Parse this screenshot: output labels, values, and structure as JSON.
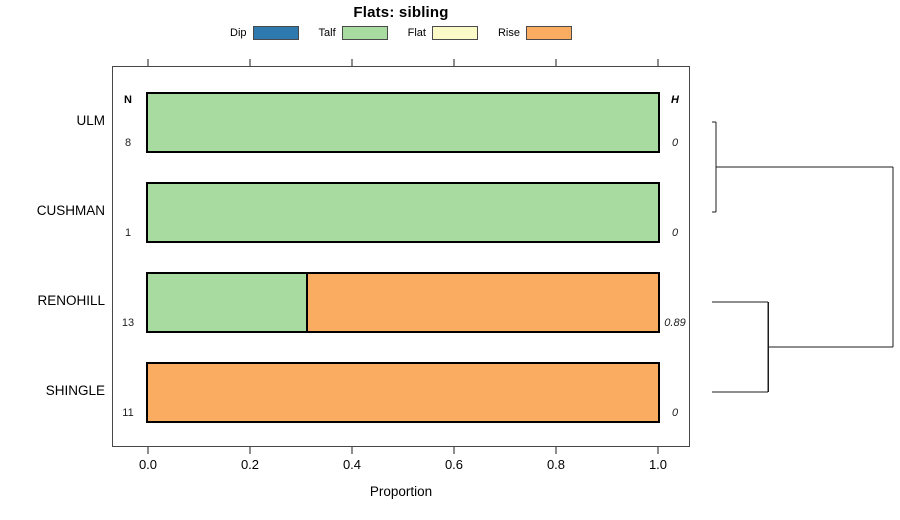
{
  "chart_data": {
    "type": "bar",
    "variant": "horizontal_stacked_proportions_with_dendrogram",
    "title": "Flats: sibling",
    "xlabel": "Proportion",
    "xlim": [
      0,
      1
    ],
    "x_ticks": [
      0,
      0.2,
      0.4,
      0.6,
      0.8,
      1.0
    ],
    "x_tick_labels": [
      "0.0",
      "0.2",
      "0.4",
      "0.6",
      "0.8",
      "1.0"
    ],
    "grid": false,
    "legend_position": "top",
    "legend": [
      {
        "label": "Dip",
        "color": "#2E79AE"
      },
      {
        "label": "Talf",
        "color": "#A8DBA0"
      },
      {
        "label": "Flat",
        "color": "#FAFAC8"
      },
      {
        "label": "Rise",
        "color": "#FAAC61"
      }
    ],
    "columns": {
      "n_header": "N",
      "h_header": "H"
    },
    "rows": [
      {
        "label": "ULM",
        "n": "8",
        "h": "0",
        "segments": [
          {
            "category": "Talf",
            "value": 1.0
          }
        ]
      },
      {
        "label": "CUSHMAN",
        "n": "1",
        "h": "0",
        "segments": [
          {
            "category": "Talf",
            "value": 1.0
          }
        ]
      },
      {
        "label": "RENOHILL",
        "n": "13",
        "h": "0.89",
        "segments": [
          {
            "category": "Talf",
            "value": 0.31
          },
          {
            "category": "Rise",
            "value": 0.69
          }
        ]
      },
      {
        "label": "SHINGLE",
        "n": "11",
        "h": "0",
        "segments": [
          {
            "category": "Rise",
            "value": 1.0
          }
        ]
      }
    ],
    "dendrogram": {
      "orientation": "right",
      "merges": [
        {
          "a": "leaf:0",
          "b": "leaf:1",
          "height": 0.022
        },
        {
          "a": "leaf:2",
          "b": "leaf:3",
          "height": 0.31
        },
        {
          "a": "merge:0",
          "b": "merge:1",
          "height": 1.0
        }
      ]
    }
  }
}
